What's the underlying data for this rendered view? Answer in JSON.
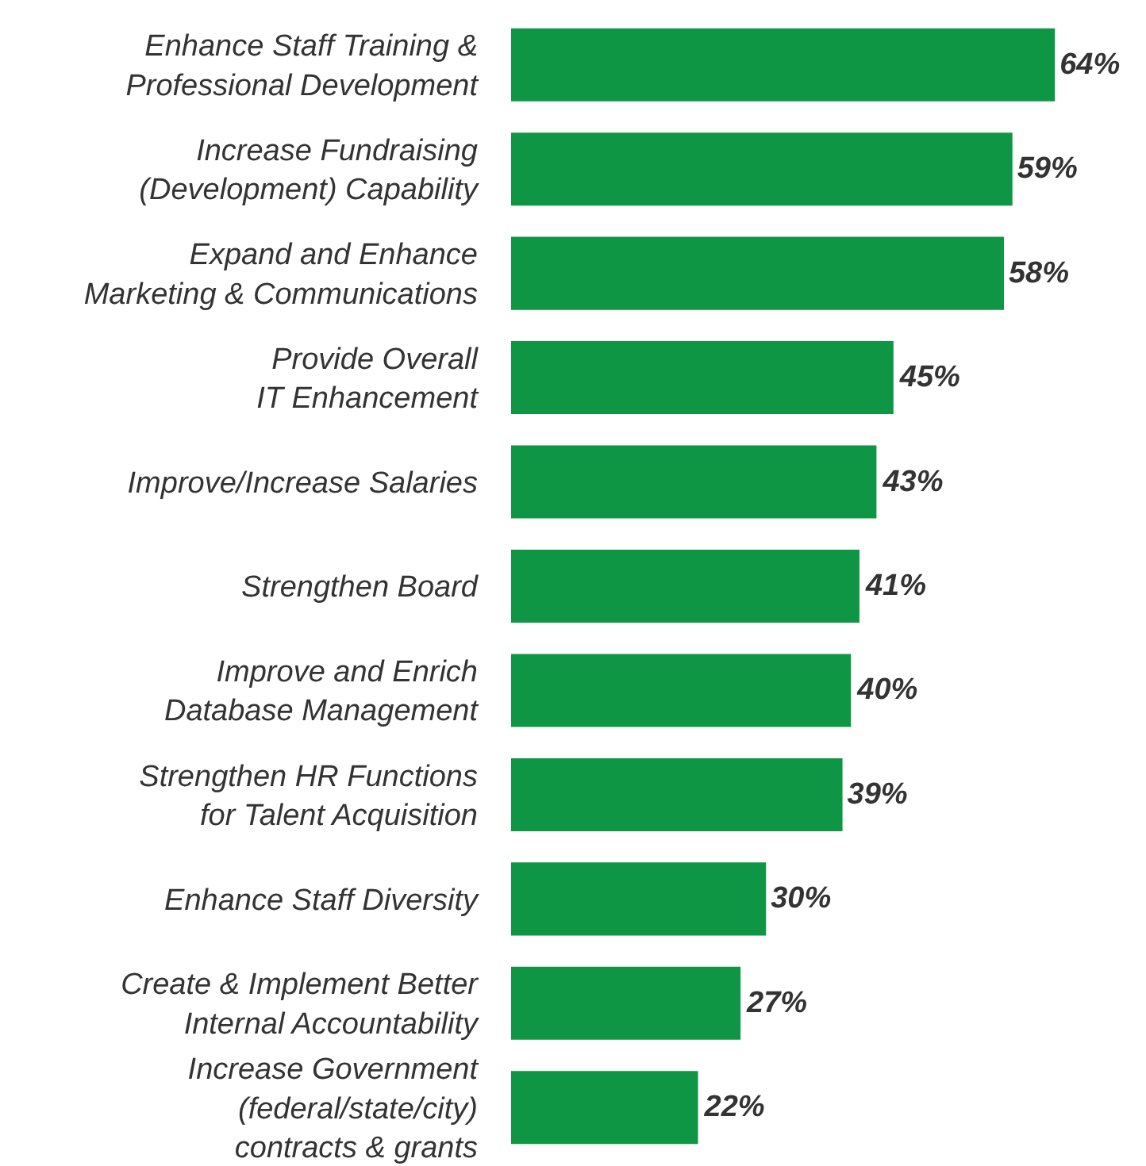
{
  "chart_data": {
    "type": "bar",
    "orientation": "horizontal",
    "categories": [
      "Enhance Staff Training &\nProfessional Development",
      "Increase Fundraising\n(Development) Capability",
      "Expand and Enhance\nMarketing & Communications",
      "Provide Overall\nIT Enhancement",
      "Improve/Increase Salaries",
      "Strengthen Board",
      "Improve and Enrich\nDatabase Management",
      "Strengthen HR Functions\nfor Talent Acquisition",
      "Enhance Staff Diversity",
      "Create & Implement Better\nInternal Accountability",
      "Increase Government\n(federal/state/city)\ncontracts & grants"
    ],
    "values": [
      64,
      59,
      58,
      45,
      43,
      41,
      40,
      39,
      30,
      27,
      22
    ],
    "value_labels": [
      "64%",
      "59%",
      "58%",
      "45%",
      "43%",
      "41%",
      "40%",
      "39%",
      "30%",
      "27%",
      "22%"
    ],
    "color": "#0e9644"
  }
}
